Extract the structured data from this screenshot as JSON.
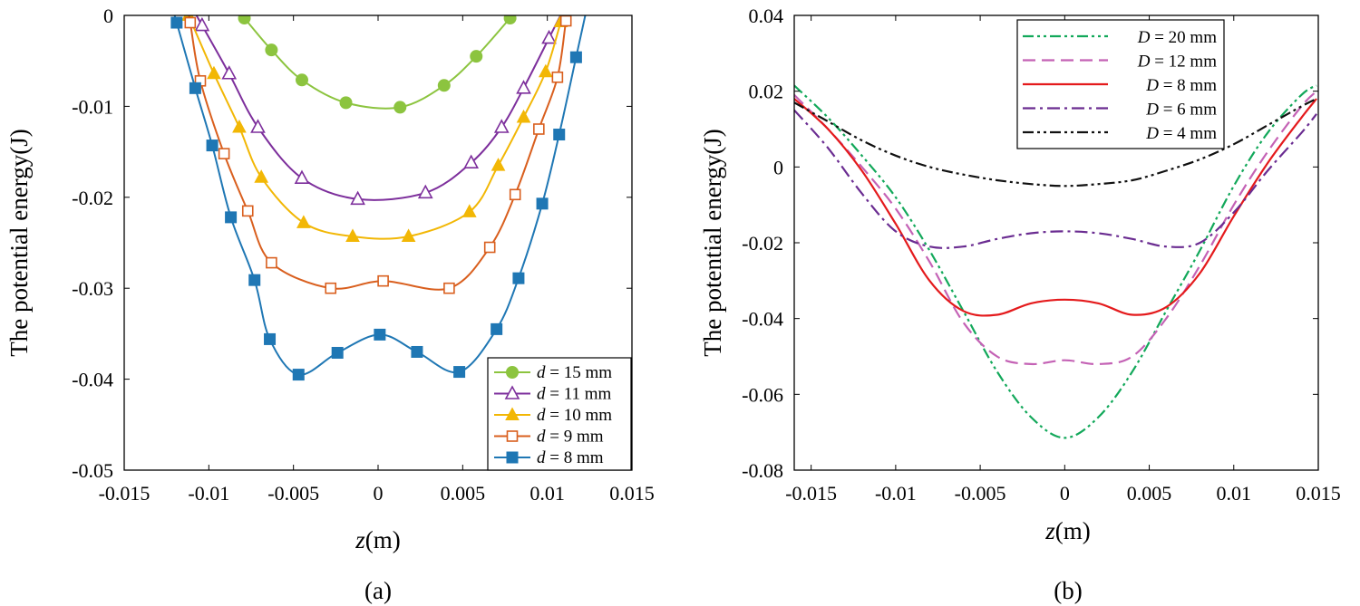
{
  "chart_data": [
    {
      "type": "line",
      "panel": "a",
      "caption": "(a)",
      "xlabel_var": "z",
      "xlabel_unit": "(m)",
      "ylabel": "The potential energy(J)",
      "xlim": [
        -0.015,
        0.015
      ],
      "ylim": [
        -0.05,
        0
      ],
      "xticks": [
        -0.015,
        -0.01,
        -0.005,
        0,
        0.005,
        0.01,
        0.015
      ],
      "xtick_labels": [
        "-0.015",
        "-0.01",
        "-0.005",
        "0",
        "0.005",
        "0.01",
        "0.015"
      ],
      "yticks": [
        0,
        -0.01,
        -0.02,
        -0.03,
        -0.04,
        -0.05
      ],
      "ytick_labels": [
        "0",
        "-0.01",
        "-0.02",
        "-0.03",
        "-0.04",
        "-0.05"
      ],
      "legend_position": "bottom-right",
      "series": [
        {
          "name": "d = 15 mm",
          "var": "d",
          "rest": " = 15 mm",
          "color": "#8cc43f",
          "marker": "circle",
          "x": [
            -0.0079,
            -0.0063,
            -0.0045,
            -0.0019,
            0.0013,
            0.0039,
            0.0058,
            0.0078
          ],
          "y": [
            -0.0003,
            -0.0038,
            -0.0071,
            -0.0096,
            -0.0101,
            -0.0077,
            -0.0045,
            -0.0003
          ]
        },
        {
          "name": "d = 11 mm",
          "var": "d",
          "rest": " = 11 mm",
          "color": "#7d2f9c",
          "marker": "triangle-open",
          "x": [
            -0.0104,
            -0.0088,
            -0.0071,
            -0.0045,
            -0.0012,
            0.0028,
            0.0055,
            0.0073,
            0.0086,
            0.0101
          ],
          "y": [
            -0.0011,
            -0.0064,
            -0.0123,
            -0.0179,
            -0.0202,
            -0.0195,
            -0.0162,
            -0.0123,
            -0.008,
            -0.0025
          ]
        },
        {
          "name": "d = 10 mm",
          "var": "d",
          "rest": " = 10 mm",
          "color": "#f2b705",
          "marker": "triangle",
          "x": [
            -0.0112,
            -0.0097,
            -0.0082,
            -0.0069,
            -0.0044,
            -0.0015,
            0.0018,
            0.0054,
            0.0071,
            0.0086,
            0.0099,
            0.0108
          ],
          "y": [
            0.0,
            -0.0064,
            -0.0123,
            -0.0178,
            -0.0228,
            -0.0243,
            -0.0243,
            -0.0216,
            -0.0165,
            -0.0112,
            -0.0062,
            -0.0007
          ]
        },
        {
          "name": "d = 9 mm",
          "var": "d",
          "rest": " = 9 mm",
          "color": "#d95f1e",
          "marker": "square-open",
          "x": [
            -0.0111,
            -0.0105,
            -0.0091,
            -0.0077,
            -0.0063,
            -0.0028,
            0.0003,
            0.0042,
            0.0066,
            0.0081,
            0.0095,
            0.0106,
            0.0111
          ],
          "y": [
            -0.0008,
            -0.0072,
            -0.0152,
            -0.0215,
            -0.0272,
            -0.03,
            -0.0292,
            -0.03,
            -0.0255,
            -0.0197,
            -0.0125,
            -0.0068,
            -0.0006
          ]
        },
        {
          "name": "d = 8 mm",
          "var": "d",
          "rest": " = 8 mm",
          "color": "#1f77b4",
          "marker": "square",
          "x": [
            -0.0119,
            -0.0108,
            -0.0098,
            -0.0087,
            -0.0073,
            -0.0064,
            -0.0047,
            -0.0024,
            0.0001,
            0.0023,
            0.0048,
            0.007,
            0.0083,
            0.0097,
            0.0107,
            0.0117
          ],
          "y": [
            -0.0008,
            -0.008,
            -0.0143,
            -0.0222,
            -0.0291,
            -0.0356,
            -0.0395,
            -0.0371,
            -0.0351,
            -0.037,
            -0.0392,
            -0.0345,
            -0.0289,
            -0.0207,
            -0.0131,
            -0.0046
          ]
        }
      ]
    },
    {
      "type": "line",
      "panel": "b",
      "caption": "(b)",
      "xlabel_var": "z",
      "xlabel_unit": "(m)",
      "ylabel": "The potential energy(J)",
      "xlim": [
        -0.016,
        0.015
      ],
      "ylim": [
        -0.08,
        0.04
      ],
      "xticks": [
        -0.015,
        -0.01,
        -0.005,
        0,
        0.005,
        0.01,
        0.015
      ],
      "xtick_labels": [
        "-0.015",
        "-0.01",
        "-0.005",
        "0",
        "0.005",
        "0.01",
        "0.015"
      ],
      "yticks": [
        0.04,
        0.02,
        0,
        -0.02,
        -0.04,
        -0.06,
        -0.08
      ],
      "ytick_labels": [
        "0.04",
        "0.02",
        "0",
        "-0.02",
        "-0.04",
        "-0.06",
        "-0.08"
      ],
      "legend_position": "top-center",
      "series": [
        {
          "name": "D = 20 mm",
          "var": "D",
          "rest": " = 20 mm",
          "color": "#12a85a",
          "dash": "12 4 3 4 3 4",
          "x": [
            -0.016,
            -0.014,
            -0.012,
            -0.01,
            -0.008,
            -0.006,
            -0.004,
            -0.002,
            0,
            0.002,
            0.004,
            0.006,
            0.008,
            0.01,
            0.012,
            0.014,
            0.0149
          ],
          "y": [
            0.0215,
            0.013,
            0.003,
            -0.008,
            -0.022,
            -0.038,
            -0.054,
            -0.066,
            -0.0715,
            -0.066,
            -0.054,
            -0.038,
            -0.022,
            -0.005,
            0.009,
            0.019,
            0.0215
          ]
        },
        {
          "name": "D = 12 mm",
          "var": "D",
          "rest": " = 12 mm",
          "color": "#c462b5",
          "dash": "14 7",
          "x": [
            -0.016,
            -0.014,
            -0.012,
            -0.01,
            -0.008,
            -0.006,
            -0.004,
            -0.002,
            0,
            0.002,
            0.004,
            0.006,
            0.008,
            0.01,
            0.012,
            0.014,
            0.0149
          ],
          "y": [
            0.019,
            0.01,
            0.0,
            -0.011,
            -0.025,
            -0.041,
            -0.05,
            -0.052,
            -0.051,
            -0.052,
            -0.05,
            -0.04,
            -0.026,
            -0.01,
            0.004,
            0.016,
            0.02
          ]
        },
        {
          "name": "D = 8 mm",
          "var": "D",
          "rest": " = 8 mm",
          "color": "#e41a1c",
          "dash": "",
          "x": [
            -0.016,
            -0.014,
            -0.012,
            -0.01,
            -0.008,
            -0.006,
            -0.004,
            -0.002,
            0,
            0.002,
            0.004,
            0.006,
            0.008,
            0.01,
            0.012,
            0.014,
            0.0149
          ],
          "y": [
            0.018,
            0.01,
            -0.001,
            -0.015,
            -0.03,
            -0.038,
            -0.039,
            -0.036,
            -0.035,
            -0.036,
            -0.039,
            -0.037,
            -0.028,
            -0.013,
            0.001,
            0.013,
            0.018
          ]
        },
        {
          "name": "D = 6 mm",
          "var": "D",
          "rest": " = 6 mm",
          "color": "#6a2c91",
          "dash": "14 5 3 5",
          "x": [
            -0.016,
            -0.014,
            -0.012,
            -0.01,
            -0.008,
            -0.006,
            -0.004,
            -0.002,
            0,
            0.002,
            0.004,
            0.006,
            0.008,
            0.01,
            0.012,
            0.014,
            0.0149
          ],
          "y": [
            0.015,
            0.005,
            -0.007,
            -0.017,
            -0.021,
            -0.021,
            -0.019,
            -0.0175,
            -0.017,
            -0.0175,
            -0.019,
            -0.021,
            -0.02,
            -0.012,
            -0.001,
            0.009,
            0.014
          ]
        },
        {
          "name": "D = 4 mm",
          "var": "D",
          "rest": " = 4 mm",
          "color": "#111111",
          "dash": "12 4 3 4 3 4",
          "x": [
            -0.016,
            -0.014,
            -0.012,
            -0.01,
            -0.008,
            -0.006,
            -0.004,
            -0.002,
            0,
            0.002,
            0.004,
            0.006,
            0.008,
            0.01,
            0.012,
            0.014,
            0.0149
          ],
          "y": [
            0.017,
            0.012,
            0.007,
            0.003,
            0.0,
            -0.002,
            -0.0035,
            -0.0045,
            -0.005,
            -0.0045,
            -0.0035,
            -0.001,
            0.002,
            0.006,
            0.011,
            0.016,
            0.018
          ]
        }
      ]
    }
  ]
}
